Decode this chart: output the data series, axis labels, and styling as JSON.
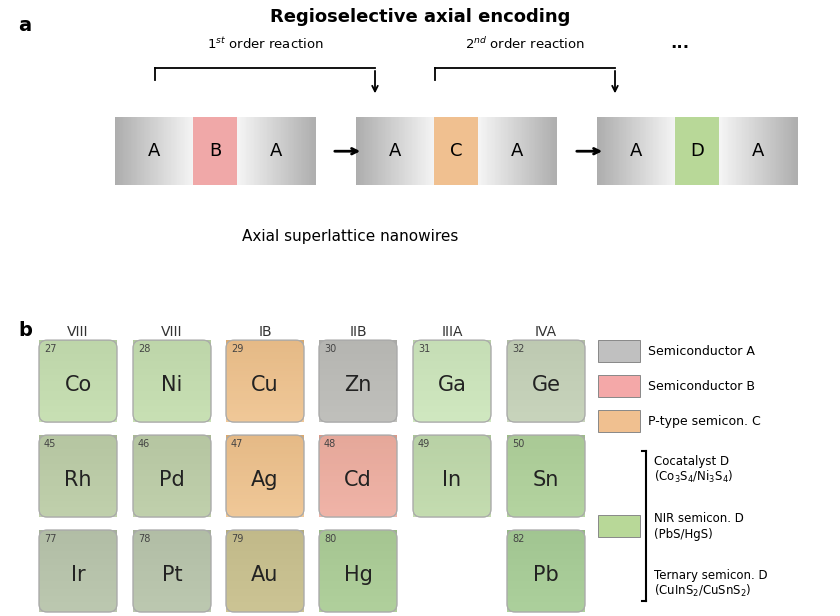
{
  "title_a": "Regioselective axial encoding",
  "subtitle_nanowires": "Axial superlattice nanowires",
  "col_headers": [
    "VIII",
    "VIII",
    "IB",
    "IIB",
    "IIIA",
    "IVA"
  ],
  "elements": [
    {
      "row": 0,
      "col": 0,
      "num": "27",
      "sym": "Co",
      "c1": "#c8e0b4",
      "c2": "#b0c89c"
    },
    {
      "row": 0,
      "col": 1,
      "num": "28",
      "sym": "Ni",
      "c1": "#c8e0b4",
      "c2": "#b0c89c"
    },
    {
      "row": 0,
      "col": 2,
      "num": "29",
      "sym": "Cu",
      "c1": "#f0c898",
      "c2": "#d8a870"
    },
    {
      "row": 0,
      "col": 3,
      "num": "30",
      "sym": "Zn",
      "c1": "#c0c0bc",
      "c2": "#a8a8a4"
    },
    {
      "row": 0,
      "col": 4,
      "num": "31",
      "sym": "Ga",
      "c1": "#d0e8c0",
      "c2": "#b8d0a8"
    },
    {
      "row": 0,
      "col": 5,
      "num": "32",
      "sym": "Ge",
      "c1": "#c8d4bc",
      "c2": "#b0bca4"
    },
    {
      "row": 1,
      "col": 0,
      "num": "45",
      "sym": "Rh",
      "c1": "#c0d0ac",
      "c2": "#a8b894"
    },
    {
      "row": 1,
      "col": 1,
      "num": "46",
      "sym": "Pd",
      "c1": "#c0d0ac",
      "c2": "#a8b894"
    },
    {
      "row": 1,
      "col": 2,
      "num": "47",
      "sym": "Ag",
      "c1": "#f0c898",
      "c2": "#d8a870"
    },
    {
      "row": 1,
      "col": 3,
      "num": "48",
      "sym": "Cd",
      "c1": "#f0b4a8",
      "c2": "#d89888"
    },
    {
      "row": 1,
      "col": 4,
      "num": "49",
      "sym": "In",
      "c1": "#c4dcb0",
      "c2": "#aac498"
    },
    {
      "row": 1,
      "col": 5,
      "num": "50",
      "sym": "Sn",
      "c1": "#b4d4a0",
      "c2": "#9cbc88"
    },
    {
      "row": 2,
      "col": 0,
      "num": "77",
      "sym": "Ir",
      "c1": "#bcc8b0",
      "c2": "#a4b098"
    },
    {
      "row": 2,
      "col": 1,
      "num": "78",
      "sym": "Pt",
      "c1": "#bcc8b0",
      "c2": "#a4b098"
    },
    {
      "row": 2,
      "col": 2,
      "num": "79",
      "sym": "Au",
      "c1": "#ccc494",
      "c2": "#b4ac7c"
    },
    {
      "row": 2,
      "col": 3,
      "num": "80",
      "sym": "Hg",
      "c1": "#b0d09c",
      "c2": "#98b884"
    },
    {
      "row": 2,
      "col": 4,
      "num": "",
      "sym": "",
      "c1": null,
      "c2": null
    },
    {
      "row": 2,
      "col": 5,
      "num": "82",
      "sym": "Pb",
      "c1": "#acd09c",
      "c2": "#94b884"
    }
  ],
  "nw_color_B": "#f0a8a8",
  "nw_color_C": "#f0c090",
  "nw_color_D": "#b8d898",
  "legend_A_color": "#c0c0c0",
  "legend_B_color": "#f4a8a8",
  "legend_C_color": "#f0c090",
  "legend_D_color": "#b8d898"
}
